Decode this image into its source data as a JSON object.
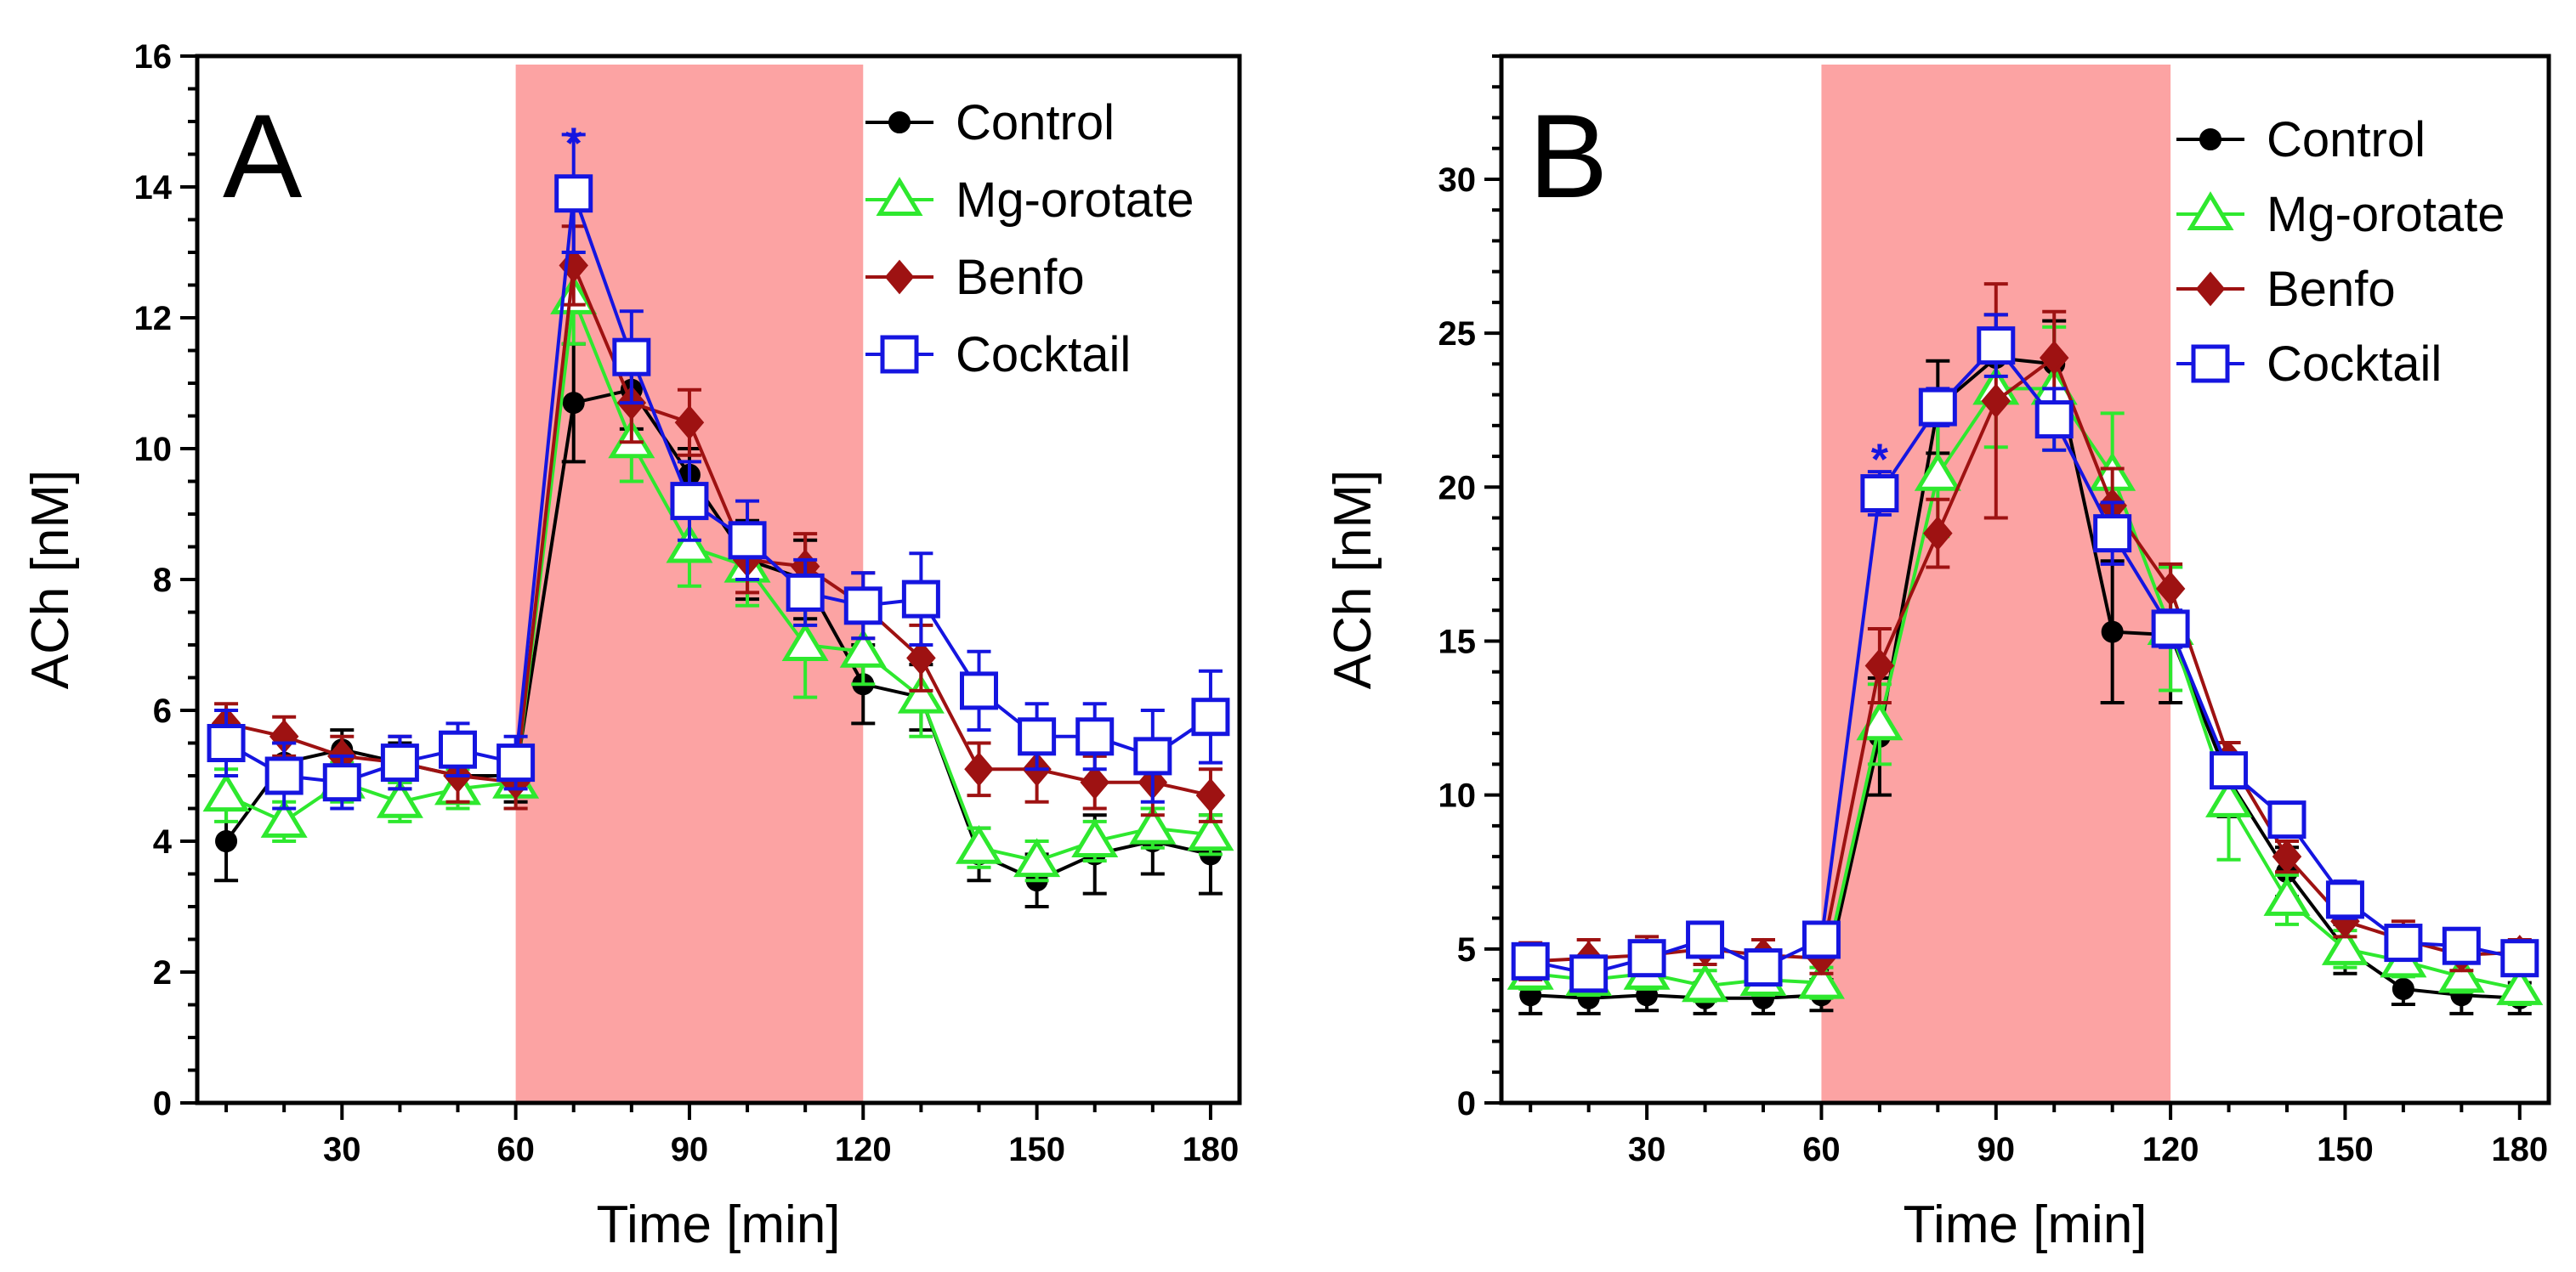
{
  "chart_data": [
    {
      "type": "line",
      "panel": "A",
      "xlabel": "Time [min]",
      "ylabel": "ACh [nM]",
      "xlim": [
        5,
        185
      ],
      "ylim": [
        0,
        16
      ],
      "xticks": [
        30,
        60,
        90,
        120,
        150,
        180
      ],
      "xtick_labels": [
        "30",
        "60",
        "90",
        "120",
        "150",
        "180"
      ],
      "yticks": [
        0,
        2,
        4,
        6,
        8,
        10,
        12,
        14,
        16
      ],
      "ytick_labels": [
        "0",
        "2",
        "4",
        "6",
        "8",
        "10",
        "12",
        "14",
        "16"
      ],
      "shaded_region": {
        "x0": 60,
        "x1": 120,
        "color": "#fca3a3"
      },
      "annotations": [
        {
          "text": "*",
          "x": 70,
          "y": 14.9,
          "color": "#1515e0"
        }
      ],
      "x": [
        10,
        20,
        30,
        40,
        50,
        60,
        70,
        80,
        90,
        100,
        110,
        120,
        130,
        140,
        150,
        160,
        170,
        180
      ],
      "series": [
        {
          "name": "Control",
          "color": "#000000",
          "marker": "circle",
          "values": [
            4.0,
            5.2,
            5.4,
            5.2,
            5.0,
            5.0,
            10.7,
            10.9,
            9.6,
            8.3,
            8.0,
            6.4,
            6.2,
            3.8,
            3.4,
            3.8,
            4.0,
            3.8
          ],
          "errors": [
            0.6,
            0.3,
            0.3,
            0.3,
            0.4,
            0.4,
            0.9,
            0.6,
            0.4,
            0.6,
            0.6,
            0.6,
            0.5,
            0.4,
            0.4,
            0.6,
            0.5,
            0.6
          ]
        },
        {
          "name": "Mg-orotate",
          "color": "#2ee82e",
          "marker": "triangle",
          "values": [
            4.7,
            4.3,
            4.9,
            4.6,
            4.8,
            4.9,
            12.3,
            10.1,
            8.5,
            8.2,
            7.0,
            6.9,
            6.2,
            3.9,
            3.7,
            4.0,
            4.2,
            4.1
          ],
          "errors": [
            0.4,
            0.3,
            0.3,
            0.3,
            0.3,
            0.4,
            0.7,
            0.6,
            0.6,
            0.6,
            0.8,
            0.5,
            0.6,
            0.3,
            0.3,
            0.3,
            0.3,
            0.3
          ]
        },
        {
          "name": "Benfo",
          "color": "#9e1212",
          "marker": "diamond",
          "values": [
            5.8,
            5.6,
            5.3,
            5.2,
            5.0,
            4.9,
            12.8,
            10.7,
            10.4,
            8.3,
            8.2,
            7.6,
            6.8,
            5.1,
            5.1,
            4.9,
            4.9,
            4.7
          ],
          "errors": [
            0.3,
            0.3,
            0.3,
            0.4,
            0.4,
            0.4,
            0.6,
            0.6,
            0.5,
            0.5,
            0.5,
            0.5,
            0.5,
            0.4,
            0.5,
            0.4,
            0.5,
            0.4
          ]
        },
        {
          "name": "Cocktail",
          "color": "#1515e0",
          "marker": "square",
          "values": [
            5.5,
            5.0,
            4.9,
            5.2,
            5.4,
            5.2,
            13.9,
            11.4,
            9.2,
            8.6,
            7.8,
            7.6,
            7.7,
            6.3,
            5.6,
            5.6,
            5.3,
            5.9
          ],
          "errors": [
            0.5,
            0.5,
            0.4,
            0.4,
            0.4,
            0.4,
            0.9,
            0.7,
            0.6,
            0.6,
            0.5,
            0.5,
            0.7,
            0.6,
            0.5,
            0.5,
            0.7,
            0.7
          ]
        }
      ]
    },
    {
      "type": "line",
      "panel": "B",
      "xlabel": "Time [min]",
      "ylabel": "ACh [nM]",
      "xlim": [
        5,
        185
      ],
      "ylim": [
        0,
        34
      ],
      "xticks": [
        30,
        60,
        90,
        120,
        150,
        180
      ],
      "xtick_labels": [
        "30",
        "60",
        "90",
        "120",
        "150",
        "180"
      ],
      "yticks": [
        0,
        5,
        10,
        15,
        20,
        25,
        30
      ],
      "ytick_labels": [
        "0",
        "5",
        "10",
        "15",
        "20",
        "25",
        "30"
      ],
      "shaded_region": {
        "x0": 60,
        "x1": 120,
        "color": "#fca3a3"
      },
      "annotations": [
        {
          "text": "*",
          "x": 70,
          "y": 21.4,
          "color": "#1515e0"
        }
      ],
      "x": [
        10,
        20,
        30,
        40,
        50,
        60,
        70,
        80,
        90,
        100,
        110,
        120,
        130,
        140,
        150,
        160,
        170,
        180
      ],
      "series": [
        {
          "name": "Control",
          "color": "#000000",
          "marker": "circle",
          "values": [
            3.5,
            3.4,
            3.5,
            3.4,
            3.4,
            3.5,
            11.9,
            22.6,
            24.2,
            24.0,
            15.3,
            15.2,
            10.5,
            7.5,
            5.0,
            3.7,
            3.5,
            3.4
          ],
          "errors": [
            0.6,
            0.5,
            0.5,
            0.5,
            0.5,
            0.5,
            1.9,
            1.5,
            1.4,
            1.4,
            2.3,
            2.2,
            1.2,
            0.8,
            0.8,
            0.5,
            0.6,
            0.5
          ]
        },
        {
          "name": "Mg-orotate",
          "color": "#2ee82e",
          "marker": "triangle",
          "values": [
            4.2,
            4.0,
            4.2,
            3.8,
            4.0,
            3.9,
            12.3,
            20.4,
            23.2,
            23.2,
            20.4,
            15.4,
            9.8,
            6.6,
            5.0,
            4.6,
            4.1,
            3.7
          ],
          "errors": [
            0.5,
            0.5,
            0.5,
            0.5,
            0.5,
            0.5,
            1.3,
            2.0,
            1.9,
            2.0,
            2.0,
            2.0,
            1.9,
            0.8,
            0.6,
            0.5,
            0.5,
            0.5
          ]
        },
        {
          "name": "Benfo",
          "color": "#9e1212",
          "marker": "diamond",
          "values": [
            4.6,
            4.7,
            4.8,
            5.0,
            4.8,
            4.7,
            14.2,
            18.5,
            22.8,
            24.2,
            19.4,
            16.7,
            11.2,
            8.0,
            5.9,
            5.3,
            4.8,
            4.9
          ],
          "errors": [
            0.6,
            0.6,
            0.6,
            0.5,
            0.5,
            0.5,
            1.2,
            1.1,
            3.8,
            1.5,
            1.2,
            0.8,
            0.5,
            0.5,
            0.5,
            0.6,
            0.5,
            0.4
          ]
        },
        {
          "name": "Cocktail",
          "color": "#1515e0",
          "marker": "square",
          "values": [
            4.6,
            4.2,
            4.7,
            5.3,
            4.4,
            5.3,
            19.8,
            22.6,
            24.6,
            22.2,
            18.5,
            15.4,
            10.8,
            9.2,
            6.6,
            5.2,
            5.1,
            4.7
          ],
          "errors": [
            0.4,
            0.4,
            0.4,
            0.4,
            0.4,
            0.4,
            0.7,
            0.6,
            1.0,
            1.0,
            1.0,
            0.6,
            0.5,
            0.5,
            0.6,
            0.4,
            0.4,
            0.3
          ]
        }
      ]
    }
  ]
}
